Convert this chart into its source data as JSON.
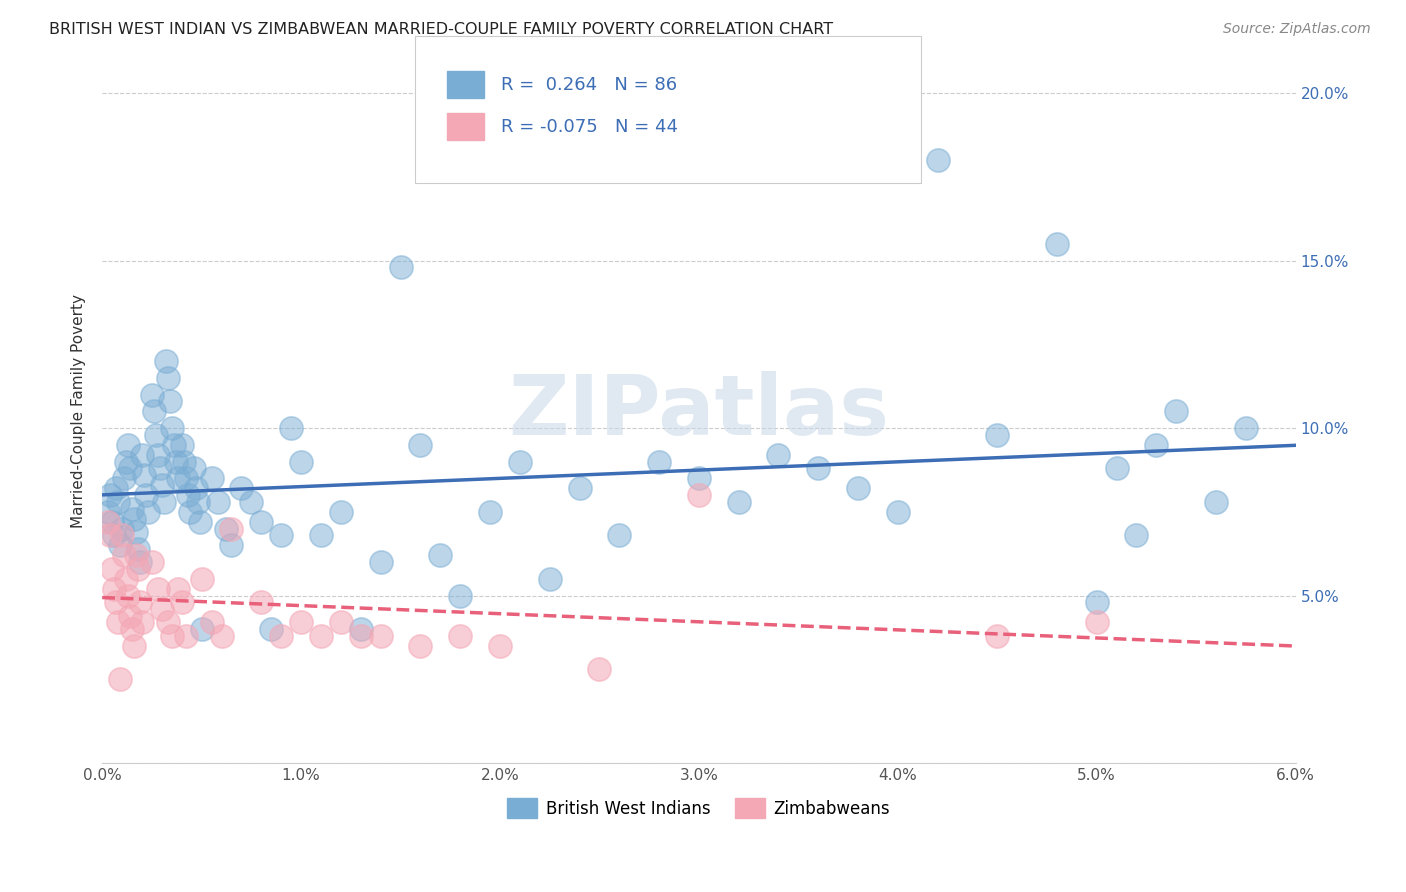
{
  "title": "BRITISH WEST INDIAN VS ZIMBABWEAN MARRIED-COUPLE FAMILY POVERTY CORRELATION CHART",
  "source": "Source: ZipAtlas.com",
  "ylabel": "Married-Couple Family Poverty",
  "xlim": [
    0.0,
    0.06
  ],
  "ylim": [
    0.0,
    0.21
  ],
  "xtick_vals": [
    0.0,
    0.01,
    0.02,
    0.03,
    0.04,
    0.05,
    0.06
  ],
  "xticklabels": [
    "0.0%",
    "1.0%",
    "2.0%",
    "3.0%",
    "4.0%",
    "5.0%",
    "6.0%"
  ],
  "ytick_vals": [
    0.0,
    0.05,
    0.1,
    0.15,
    0.2
  ],
  "yticklabels_right": [
    "",
    "5.0%",
    "10.0%",
    "15.0%",
    "20.0%"
  ],
  "blue_color": "#7aadd4",
  "pink_color": "#f4a7b5",
  "line_blue": "#3d6eb5",
  "line_pink": "#e8607a",
  "watermark": "ZIPatlas",
  "legend_R_blue": "0.264",
  "legend_N_blue": "86",
  "legend_R_pink": "-0.075",
  "legend_N_pink": "44",
  "legend_label_blue": "British West Indians",
  "legend_label_pink": "Zimbabweans",
  "blue_x": [
    0.0003,
    0.0004,
    0.0005,
    0.0006,
    0.0007,
    0.0008,
    0.0009,
    0.001,
    0.0011,
    0.0012,
    0.0013,
    0.0014,
    0.0015,
    0.0016,
    0.0017,
    0.0018,
    0.0019,
    0.002,
    0.0021,
    0.0022,
    0.0023,
    0.0025,
    0.0026,
    0.0027,
    0.0028,
    0.0029,
    0.003,
    0.0031,
    0.0032,
    0.0033,
    0.0034,
    0.0035,
    0.0036,
    0.0037,
    0.0038,
    0.004,
    0.0041,
    0.0042,
    0.0043,
    0.0044,
    0.0046,
    0.0047,
    0.0048,
    0.0049,
    0.005,
    0.0055,
    0.0058,
    0.0062,
    0.0065,
    0.007,
    0.0075,
    0.008,
    0.0085,
    0.009,
    0.0095,
    0.01,
    0.011,
    0.012,
    0.013,
    0.014,
    0.015,
    0.016,
    0.017,
    0.018,
    0.0195,
    0.021,
    0.0225,
    0.024,
    0.026,
    0.028,
    0.03,
    0.032,
    0.034,
    0.036,
    0.038,
    0.04,
    0.042,
    0.045,
    0.048,
    0.05,
    0.051,
    0.052,
    0.053,
    0.054,
    0.056,
    0.0575
  ],
  "blue_y": [
    0.075,
    0.08,
    0.072,
    0.068,
    0.082,
    0.078,
    0.065,
    0.07,
    0.085,
    0.09,
    0.095,
    0.088,
    0.076,
    0.073,
    0.069,
    0.064,
    0.06,
    0.092,
    0.086,
    0.08,
    0.075,
    0.11,
    0.105,
    0.098,
    0.092,
    0.088,
    0.083,
    0.078,
    0.12,
    0.115,
    0.108,
    0.1,
    0.095,
    0.09,
    0.085,
    0.095,
    0.09,
    0.085,
    0.08,
    0.075,
    0.088,
    0.082,
    0.078,
    0.072,
    0.04,
    0.085,
    0.078,
    0.07,
    0.065,
    0.082,
    0.078,
    0.072,
    0.04,
    0.068,
    0.1,
    0.09,
    0.068,
    0.075,
    0.04,
    0.06,
    0.148,
    0.095,
    0.062,
    0.05,
    0.075,
    0.09,
    0.055,
    0.082,
    0.068,
    0.09,
    0.085,
    0.078,
    0.092,
    0.088,
    0.082,
    0.075,
    0.18,
    0.098,
    0.155,
    0.048,
    0.088,
    0.068,
    0.095,
    0.105,
    0.078,
    0.1
  ],
  "pink_x": [
    0.0003,
    0.0004,
    0.0005,
    0.0006,
    0.0007,
    0.0008,
    0.0009,
    0.001,
    0.0011,
    0.0012,
    0.0013,
    0.0014,
    0.0015,
    0.0016,
    0.0017,
    0.0018,
    0.0019,
    0.002,
    0.0025,
    0.0028,
    0.003,
    0.0033,
    0.0035,
    0.0038,
    0.004,
    0.0042,
    0.005,
    0.0055,
    0.006,
    0.0065,
    0.008,
    0.009,
    0.01,
    0.011,
    0.012,
    0.013,
    0.014,
    0.016,
    0.018,
    0.02,
    0.025,
    0.03,
    0.045,
    0.05
  ],
  "pink_y": [
    0.072,
    0.068,
    0.058,
    0.052,
    0.048,
    0.042,
    0.025,
    0.068,
    0.062,
    0.055,
    0.05,
    0.044,
    0.04,
    0.035,
    0.062,
    0.058,
    0.048,
    0.042,
    0.06,
    0.052,
    0.046,
    0.042,
    0.038,
    0.052,
    0.048,
    0.038,
    0.055,
    0.042,
    0.038,
    0.07,
    0.048,
    0.038,
    0.042,
    0.038,
    0.042,
    0.038,
    0.038,
    0.035,
    0.038,
    0.035,
    0.028,
    0.08,
    0.038,
    0.042
  ]
}
